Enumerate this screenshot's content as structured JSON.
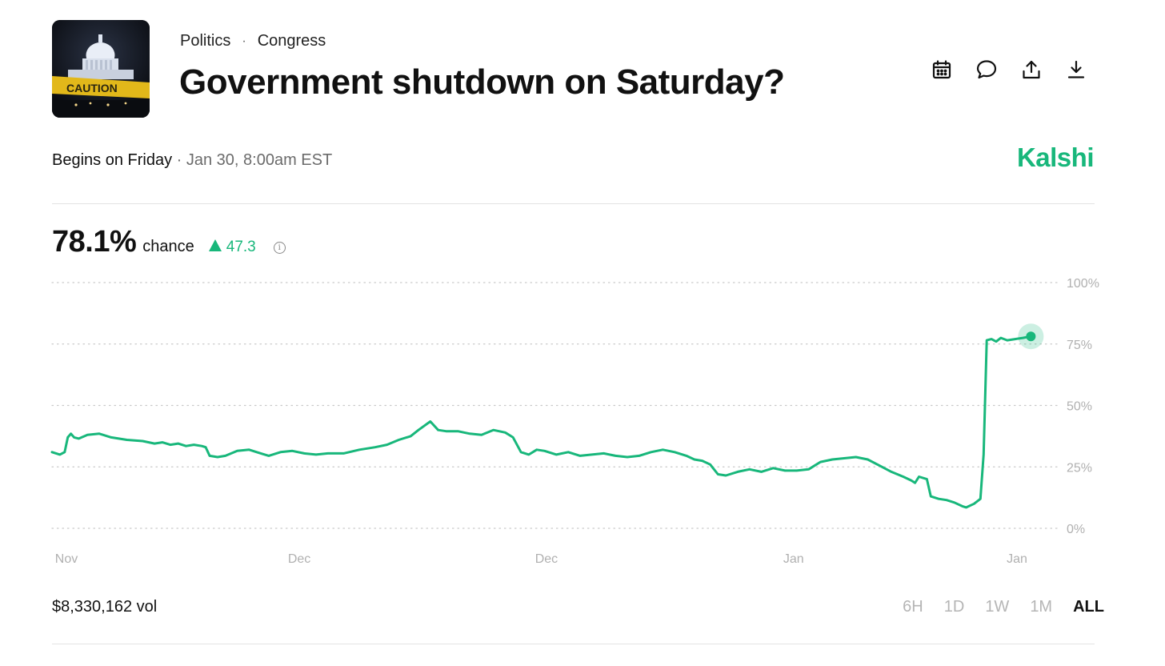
{
  "market": {
    "category": "Politics",
    "subcategory": "Congress",
    "breadcrumb_separator": "·",
    "title": "Government shutdown on Saturday?",
    "begins_label": "Begins on Friday",
    "begins_separator": " · ",
    "begins_datetime": "Jan 30, 8:00am EST",
    "brand": "Kalshi"
  },
  "thumbnail": {
    "caption_text": "CAUTION"
  },
  "actions": [
    {
      "name": "calendar-icon"
    },
    {
      "name": "comment-icon"
    },
    {
      "name": "share-icon"
    },
    {
      "name": "download-icon"
    }
  ],
  "odds": {
    "value": "78.1%",
    "label": "chance",
    "change": "47.3",
    "info_icon": "i"
  },
  "volume": "$8,330,162 vol",
  "time_ranges": [
    "6H",
    "1D",
    "1W",
    "1M",
    "ALL"
  ],
  "active_range": "ALL",
  "colors": {
    "accent": "#18b77b",
    "text": "#111111",
    "muted": "#b5b5b5"
  },
  "chart_data": {
    "type": "line",
    "ylim": [
      0,
      100
    ],
    "y_ticks": [
      "0%",
      "25%",
      "50%",
      "75%",
      "100%"
    ],
    "y_tick_values": [
      0,
      25,
      50,
      75,
      100
    ],
    "x_tick_labels": [
      "Nov",
      "Dec",
      "Dec",
      "Jan",
      "Jan"
    ],
    "x_tick_positions": [
      0,
      0.245,
      0.505,
      0.765,
      1.0
    ],
    "grid": true,
    "series": [
      {
        "color": "#18b77b",
        "points": [
          [
            0.0,
            31.0
          ],
          [
            0.01,
            30.0
          ],
          [
            0.016,
            31.0
          ],
          [
            0.02,
            37.0
          ],
          [
            0.024,
            38.5
          ],
          [
            0.028,
            37.0
          ],
          [
            0.034,
            36.5
          ],
          [
            0.045,
            38.0
          ],
          [
            0.06,
            38.5
          ],
          [
            0.075,
            37.0
          ],
          [
            0.095,
            36.0
          ],
          [
            0.115,
            35.5
          ],
          [
            0.13,
            34.5
          ],
          [
            0.14,
            35.0
          ],
          [
            0.15,
            34.0
          ],
          [
            0.16,
            34.5
          ],
          [
            0.17,
            33.5
          ],
          [
            0.18,
            34.0
          ],
          [
            0.19,
            33.5
          ],
          [
            0.195,
            33.0
          ],
          [
            0.2,
            29.5
          ],
          [
            0.21,
            29.0
          ],
          [
            0.22,
            29.5
          ],
          [
            0.235,
            31.5
          ],
          [
            0.25,
            32.0
          ],
          [
            0.265,
            30.5
          ],
          [
            0.275,
            29.5
          ],
          [
            0.29,
            31.0
          ],
          [
            0.305,
            31.5
          ],
          [
            0.32,
            30.5
          ],
          [
            0.335,
            30.0
          ],
          [
            0.35,
            30.5
          ],
          [
            0.37,
            30.5
          ],
          [
            0.39,
            32.0
          ],
          [
            0.41,
            33.0
          ],
          [
            0.425,
            34.0
          ],
          [
            0.44,
            36.0
          ],
          [
            0.455,
            37.5
          ],
          [
            0.465,
            40.0
          ],
          [
            0.48,
            43.5
          ],
          [
            0.49,
            40.0
          ],
          [
            0.5,
            39.5
          ],
          [
            0.515,
            39.5
          ],
          [
            0.53,
            38.5
          ],
          [
            0.545,
            38.0
          ],
          [
            0.56,
            40.0
          ],
          [
            0.575,
            39.0
          ],
          [
            0.585,
            37.0
          ],
          [
            0.595,
            31.0
          ],
          [
            0.605,
            30.0
          ],
          [
            0.615,
            32.0
          ],
          [
            0.625,
            31.5
          ],
          [
            0.64,
            30.0
          ],
          [
            0.655,
            31.0
          ],
          [
            0.67,
            29.5
          ],
          [
            0.685,
            30.0
          ],
          [
            0.7,
            30.5
          ],
          [
            0.715,
            29.5
          ],
          [
            0.73,
            29.0
          ],
          [
            0.745,
            29.5
          ],
          [
            0.76,
            31.0
          ],
          [
            0.775,
            32.0
          ],
          [
            0.79,
            31.0
          ],
          [
            0.805,
            29.5
          ],
          [
            0.815,
            28.0
          ],
          [
            0.825,
            27.5
          ],
          [
            0.835,
            26.0
          ],
          [
            0.845,
            22.0
          ],
          [
            0.855,
            21.5
          ],
          [
            0.87,
            23.0
          ],
          [
            0.885,
            24.0
          ],
          [
            0.9,
            23.0
          ],
          [
            0.915,
            24.5
          ],
          [
            0.93,
            23.5
          ],
          [
            0.945,
            23.5
          ],
          [
            0.96,
            24.0
          ],
          [
            0.975,
            27.0
          ],
          [
            0.99,
            28.0
          ],
          [
            1.005,
            28.5
          ],
          [
            1.02,
            29.0
          ],
          [
            1.035,
            28.0
          ],
          [
            1.05,
            25.5
          ],
          [
            1.065,
            23.0
          ],
          [
            1.08,
            21.0
          ],
          [
            1.09,
            19.5
          ],
          [
            1.095,
            18.5
          ],
          [
            1.1,
            21.0
          ],
          [
            1.11,
            20.0
          ],
          [
            1.115,
            13.0
          ],
          [
            1.125,
            12.0
          ],
          [
            1.135,
            11.5
          ],
          [
            1.145,
            10.5
          ],
          [
            1.155,
            9.0
          ],
          [
            1.16,
            8.5
          ],
          [
            1.17,
            10.0
          ],
          [
            1.178,
            12.0
          ],
          [
            1.182,
            30.0
          ],
          [
            1.186,
            76.5
          ],
          [
            1.192,
            77.0
          ],
          [
            1.198,
            76.0
          ],
          [
            1.204,
            77.5
          ],
          [
            1.212,
            76.5
          ],
          [
            1.222,
            77.0
          ],
          [
            1.232,
            77.5
          ],
          [
            1.242,
            78.1
          ]
        ]
      }
    ]
  }
}
